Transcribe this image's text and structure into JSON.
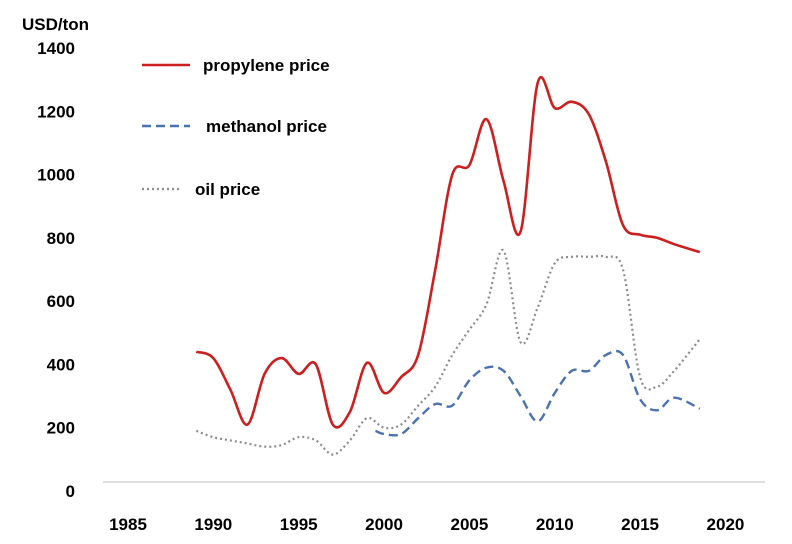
{
  "chart_data": {
    "type": "line",
    "ylabel": "USD/ton",
    "ylim": [
      0,
      1400
    ],
    "xlim": [
      1983,
      2021
    ],
    "y_ticks": [
      "0",
      "200",
      "400",
      "600",
      "800",
      "1000",
      "1200",
      "1400"
    ],
    "x_ticks": [
      "1985",
      "1990",
      "1995",
      "2000",
      "2005",
      "2010",
      "2015",
      "2020"
    ],
    "grid": false,
    "legend_position": "top-left",
    "series": [
      {
        "name": "propylene price",
        "color": "#cc1f1f",
        "style": "solid",
        "x": [
          1989,
          1990,
          1991,
          1992,
          1993,
          1994,
          1995,
          1996,
          1997,
          1998,
          1999,
          2000,
          2001,
          2002,
          2003,
          2004,
          2005,
          2006,
          2007,
          2008,
          2009,
          2010,
          2011,
          2012,
          2013,
          2014,
          2015,
          2016,
          2017,
          2018.5
        ],
        "y": [
          440,
          420,
          320,
          210,
          370,
          420,
          370,
          400,
          210,
          250,
          405,
          310,
          360,
          430,
          700,
          1000,
          1030,
          1175,
          980,
          820,
          1290,
          1210,
          1230,
          1190,
          1040,
          840,
          810,
          800,
          780,
          755
        ]
      },
      {
        "name": "methanol price",
        "color": "#4a72b0",
        "style": "dashed",
        "x": [
          1999.5,
          2000,
          2001,
          2002,
          2003,
          2004,
          2005,
          2006,
          2007,
          2008,
          2009,
          2010,
          2011,
          2012,
          2013,
          2014,
          2015,
          2016,
          2017,
          2018.5
        ],
        "y": [
          190,
          180,
          180,
          230,
          275,
          270,
          350,
          390,
          380,
          300,
          220,
          310,
          380,
          380,
          430,
          430,
          290,
          255,
          295,
          260
        ]
      },
      {
        "name": "oil price",
        "color": "#8c8c8c",
        "style": "dotted",
        "x": [
          1989,
          1990,
          1991,
          1992,
          1993,
          1994,
          1995,
          1996,
          1997,
          1998,
          1999,
          2000,
          2001,
          2002,
          2003,
          2004,
          2005,
          2006,
          2007,
          2008,
          2009,
          2010,
          2011,
          2012,
          2013,
          2014,
          2015,
          2016,
          2017,
          2018.5
        ],
        "y": [
          190,
          170,
          160,
          150,
          140,
          145,
          170,
          160,
          115,
          160,
          230,
          200,
          210,
          270,
          330,
          430,
          510,
          590,
          760,
          470,
          580,
          720,
          740,
          740,
          740,
          700,
          360,
          330,
          380,
          480
        ]
      }
    ]
  }
}
